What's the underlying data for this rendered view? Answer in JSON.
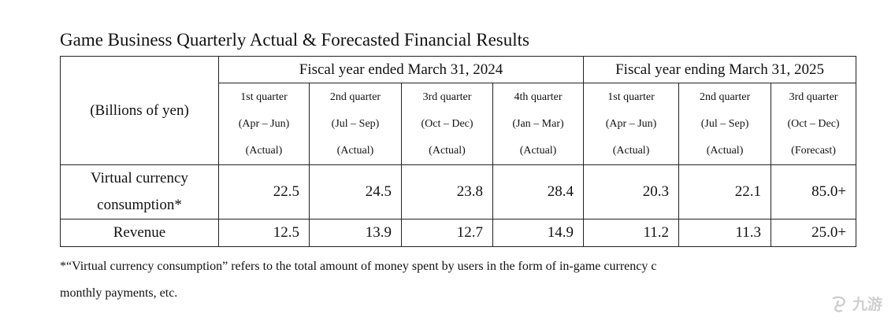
{
  "title": "Game Business Quarterly Actual & Forecasted Financial Results",
  "table": {
    "units_label": "(Billions of yen)",
    "fiscal_years": [
      "Fiscal year ended March 31, 2024",
      "Fiscal year ending March 31, 2025"
    ],
    "quarters": [
      {
        "name": "1st quarter",
        "period": "(Apr – Jun)",
        "status": "(Actual)"
      },
      {
        "name": "2nd quarter",
        "period": "(Jul – Sep)",
        "status": "(Actual)"
      },
      {
        "name": "3rd quarter",
        "period": "(Oct – Dec)",
        "status": "(Actual)"
      },
      {
        "name": "4th quarter",
        "period": "(Jan – Mar)",
        "status": "(Actual)"
      },
      {
        "name": "1st quarter",
        "period": "(Apr – Jun)",
        "status": "(Actual)"
      },
      {
        "name": "2nd quarter",
        "period": "(Jul – Sep)",
        "status": "(Actual)"
      },
      {
        "name": "3rd quarter",
        "period": "(Oct – Dec)",
        "status": "(Forecast)"
      }
    ],
    "rows": [
      {
        "label_line1": "Virtual currency",
        "label_line2": "consumption*",
        "values": [
          "22.5",
          "24.5",
          "23.8",
          "28.4",
          "20.3",
          "22.1",
          "85.0+"
        ]
      },
      {
        "label_line1": "Revenue",
        "values": [
          "12.5",
          "13.9",
          "12.7",
          "14.9",
          "11.2",
          "11.3",
          "25.0+"
        ]
      }
    ]
  },
  "footnote": {
    "line1": "*“Virtual currency consumption” refers to the total amount of money spent by users in the form of in-game currency c",
    "line2": "monthly payments, etc."
  },
  "watermark": {
    "text": "九游"
  }
}
